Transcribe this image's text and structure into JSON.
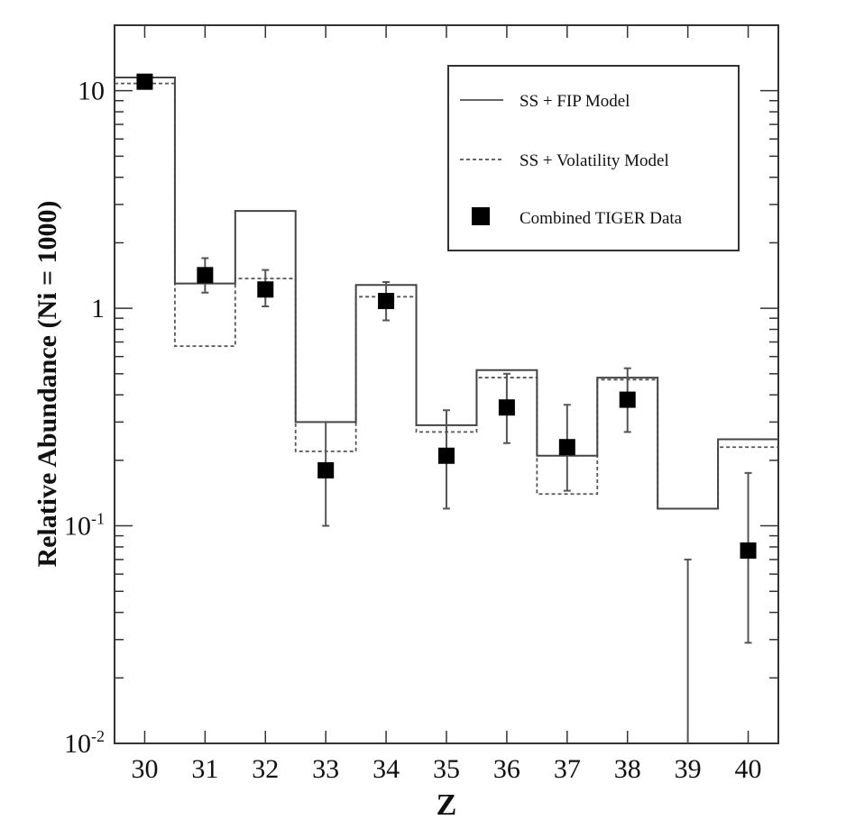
{
  "chart_data": {
    "type": "line",
    "title": "",
    "xlabel": "Z",
    "ylabel": "Relative Abundance (Ni = 1000)",
    "xlim": [
      29.5,
      40.5
    ],
    "ylim": [
      0.01,
      20
    ],
    "yscale": "log",
    "x_ticks": [
      "30",
      "31",
      "32",
      "33",
      "34",
      "35",
      "36",
      "37",
      "38",
      "39",
      "40"
    ],
    "y_ticks": [
      {
        "value": 0.01,
        "base": "10",
        "exp": "-2"
      },
      {
        "value": 0.1,
        "base": "10",
        "exp": "-1"
      },
      {
        "value": 1,
        "label": "1"
      },
      {
        "value": 10,
        "label": "10"
      }
    ],
    "grid": false,
    "legend_position": "top-right",
    "legend": {
      "fip": "SS + FIP Model",
      "volatility": "SS + Volatility Model",
      "data": "Combined TIGER Data"
    },
    "series": [
      {
        "name": "SS + FIP Model",
        "style": "step-solid",
        "x": [
          30,
          31,
          32,
          33,
          34,
          35,
          36,
          37,
          38,
          39,
          40
        ],
        "values": [
          11.5,
          1.3,
          2.8,
          0.3,
          1.28,
          0.29,
          0.52,
          0.21,
          0.48,
          0.12,
          0.25
        ]
      },
      {
        "name": "SS + Volatility Model",
        "style": "step-dashed",
        "x": [
          30,
          31,
          32,
          33,
          34,
          35,
          36,
          37,
          38,
          39,
          40
        ],
        "values": [
          10.8,
          0.67,
          1.37,
          0.22,
          1.13,
          0.27,
          0.48,
          0.14,
          0.47,
          0.12,
          0.23
        ]
      },
      {
        "name": "Combined TIGER Data",
        "style": "points",
        "points": [
          {
            "x": 30,
            "y": 11.0
          },
          {
            "x": 31,
            "y": 1.42,
            "yerr_low": 1.18,
            "yerr_high": 1.7
          },
          {
            "x": 32,
            "y": 1.22,
            "yerr_low": 1.02,
            "yerr_high": 1.5
          },
          {
            "x": 33,
            "y": 0.18,
            "yerr_low": 0.1,
            "yerr_high": 0.3
          },
          {
            "x": 34,
            "y": 1.08,
            "yerr_low": 0.88,
            "yerr_high": 1.32
          },
          {
            "x": 35,
            "y": 0.21,
            "yerr_low": 0.12,
            "yerr_high": 0.34
          },
          {
            "x": 36,
            "y": 0.35,
            "yerr_low": 0.24,
            "yerr_high": 0.5
          },
          {
            "x": 37,
            "y": 0.23,
            "yerr_low": 0.145,
            "yerr_high": 0.36
          },
          {
            "x": 38,
            "y": 0.38,
            "yerr_low": 0.27,
            "yerr_high": 0.53
          },
          {
            "x": 39,
            "y": null,
            "yerr_low": 0.01,
            "yerr_high": 0.07
          },
          {
            "x": 40,
            "y": 0.077,
            "yerr_low": 0.029,
            "yerr_high": 0.175
          }
        ]
      }
    ]
  }
}
